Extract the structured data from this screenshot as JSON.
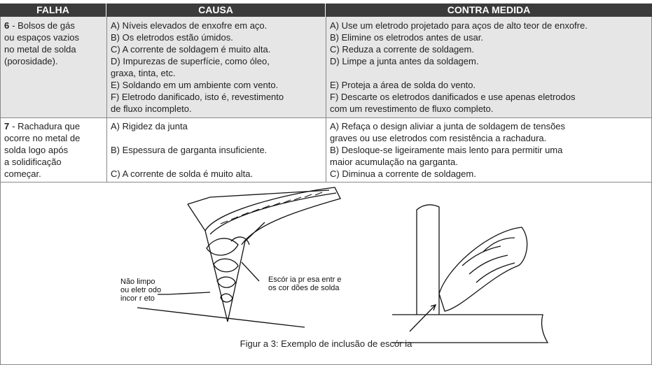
{
  "table": {
    "headers": [
      "FALHA",
      "CAUSA",
      "CONTRA MEDIDA"
    ],
    "rows": [
      {
        "number": "6",
        "failure": [
          "- Bolsos de gás",
          "ou espaços vazios",
          "no metal de solda",
          "(porosidade)."
        ],
        "causes": [
          [
            "A) Níveis elevados de enxofre em aço."
          ],
          [
            "B) Os eletrodos estão úmidos."
          ],
          [
            "C) A corrente de soldagem é muito alta."
          ],
          [
            "D) Impurezas de superfície, como óleo,",
            "graxa, tinta, etc."
          ],
          [
            "E) Soldando em um ambiente com vento."
          ],
          [
            "F) Eletrodo danificado, isto é, revestimento",
            "de fluxo incompleto."
          ]
        ],
        "countermeasures": [
          [
            "A) Use um eletrodo projetado para aços de alto teor de enxofre."
          ],
          [
            "B) Elimine os eletrodos antes de usar."
          ],
          [
            "C) Reduza a corrente de soldagem."
          ],
          [
            "D) Limpe a junta antes da soldagem."
          ],
          [
            "E) Proteja a área de solda do vento."
          ],
          [
            "F) Descarte os eletrodos danificados e use apenas eletrodos",
            "com um revestimento de fluxo completo."
          ]
        ]
      },
      {
        "number": "7",
        "failure": [
          "- Rachadura que",
          "ocorre no metal de",
          "solda logo após",
          "a solidificação",
          "começar."
        ],
        "causes": [
          [
            "A) Rigidez da junta"
          ],
          [
            "B) Espessura de garganta insuficiente."
          ],
          [
            "C) A corrente de solda é muito alta."
          ]
        ],
        "countermeasures": [
          [
            "A) Refaça o design aliviar a junta de soldagem de tensões",
            "graves ou use eletrodos com resistência a rachadura."
          ],
          [
            "B) Desloque-se ligeiramente mais lento para permitir uma",
            "maior acumulação na garganta."
          ],
          [
            "C) Diminua a corrente de soldagem."
          ]
        ]
      }
    ]
  },
  "figure": {
    "left_labels": [
      "Não limpo",
      "ou eletr odo",
      "incor r eto"
    ],
    "right_labels": [
      "Escór ia pr esa entr e",
      "os cor dões de solda"
    ],
    "caption": "Figur a 3: Exemplo de inclusão de escór ia"
  }
}
